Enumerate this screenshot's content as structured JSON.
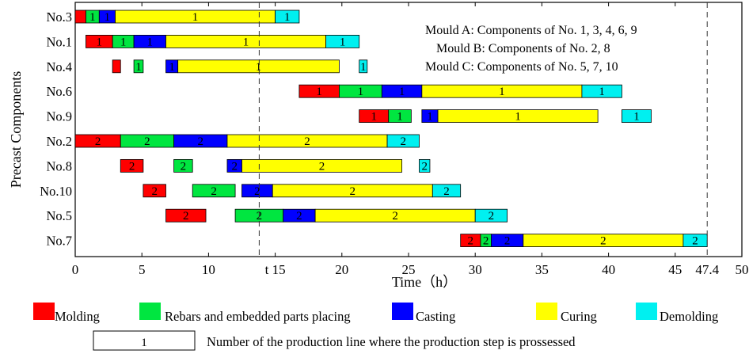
{
  "chart_data": {
    "type": "gantt",
    "ylabel": "Precast Components",
    "xlabel": "Time（h）",
    "xlim": [
      0,
      50
    ],
    "xticks": [
      0,
      5,
      10,
      15,
      20,
      25,
      30,
      35,
      40,
      45,
      50
    ],
    "xtick_labels": [
      "0",
      "5",
      "10",
      "t 15",
      "20",
      "25",
      "30",
      "35",
      "40",
      "45",
      "50"
    ],
    "extra_xtick": {
      "value": 47.4,
      "label": "47.4"
    },
    "vlines": [
      13.8,
      47.4
    ],
    "categories": [
      "No.3",
      "No.1",
      "No.4",
      "No.6",
      "No.9",
      "No.2",
      "No.8",
      "No.10",
      "No.5",
      "No.7"
    ],
    "step_colors": {
      "Molding": "#ff0000",
      "Rebars and embedded parts placing": "#00e640",
      "Casting": "#0000ff",
      "Curing": "#ffff00",
      "Demolding": "#00f0f0"
    },
    "tasks": [
      {
        "row": "No.3",
        "step": "Molding",
        "start": 0,
        "end": 0.8,
        "line": ""
      },
      {
        "row": "No.3",
        "step": "Rebars and embedded parts placing",
        "start": 0.8,
        "end": 1.8,
        "line": "1"
      },
      {
        "row": "No.3",
        "step": "Casting",
        "start": 1.8,
        "end": 3.0,
        "line": "1"
      },
      {
        "row": "No.3",
        "step": "Curing",
        "start": 3.0,
        "end": 15.0,
        "line": "1"
      },
      {
        "row": "No.3",
        "step": "Demolding",
        "start": 15.0,
        "end": 16.8,
        "line": "1"
      },
      {
        "row": "No.1",
        "step": "Molding",
        "start": 0.8,
        "end": 2.8,
        "line": "1"
      },
      {
        "row": "No.1",
        "step": "Rebars and embedded parts placing",
        "start": 2.8,
        "end": 4.4,
        "line": "1"
      },
      {
        "row": "No.1",
        "step": "Casting",
        "start": 4.4,
        "end": 6.8,
        "line": "1"
      },
      {
        "row": "No.1",
        "step": "Curing",
        "start": 6.8,
        "end": 18.8,
        "line": "1"
      },
      {
        "row": "No.1",
        "step": "Demolding",
        "start": 18.8,
        "end": 21.3,
        "line": "1"
      },
      {
        "row": "No.4",
        "step": "Molding",
        "start": 2.8,
        "end": 3.4,
        "line": ""
      },
      {
        "row": "No.4",
        "step": "Rebars and embedded parts placing",
        "start": 4.4,
        "end": 5.1,
        "line": "1"
      },
      {
        "row": "No.4",
        "step": "Casting",
        "start": 6.8,
        "end": 7.7,
        "line": "1"
      },
      {
        "row": "No.4",
        "step": "Curing",
        "start": 7.7,
        "end": 19.8,
        "line": "1"
      },
      {
        "row": "No.4",
        "step": "Demolding",
        "start": 21.3,
        "end": 21.9,
        "line": "1"
      },
      {
        "row": "No.6",
        "step": "Molding",
        "start": 16.8,
        "end": 19.8,
        "line": "1"
      },
      {
        "row": "No.6",
        "step": "Rebars and embedded parts placing",
        "start": 19.8,
        "end": 23.0,
        "line": "1"
      },
      {
        "row": "No.6",
        "step": "Casting",
        "start": 23.0,
        "end": 26.0,
        "line": "1"
      },
      {
        "row": "No.6",
        "step": "Curing",
        "start": 26.0,
        "end": 38.0,
        "line": "1"
      },
      {
        "row": "No.6",
        "step": "Demolding",
        "start": 38.0,
        "end": 41.0,
        "line": "1"
      },
      {
        "row": "No.9",
        "step": "Molding",
        "start": 21.3,
        "end": 23.5,
        "line": "1"
      },
      {
        "row": "No.9",
        "step": "Rebars and embedded parts placing",
        "start": 23.5,
        "end": 25.2,
        "line": "1"
      },
      {
        "row": "No.9",
        "step": "Casting",
        "start": 26.0,
        "end": 27.2,
        "line": "1"
      },
      {
        "row": "No.9",
        "step": "Curing",
        "start": 27.2,
        "end": 39.2,
        "line": "1"
      },
      {
        "row": "No.9",
        "step": "Demolding",
        "start": 41.0,
        "end": 43.2,
        "line": "1"
      },
      {
        "row": "No.2",
        "step": "Molding",
        "start": 0,
        "end": 3.4,
        "line": "2"
      },
      {
        "row": "No.2",
        "step": "Rebars and embedded parts placing",
        "start": 3.4,
        "end": 7.4,
        "line": "2"
      },
      {
        "row": "No.2",
        "step": "Casting",
        "start": 7.4,
        "end": 11.4,
        "line": "2"
      },
      {
        "row": "No.2",
        "step": "Curing",
        "start": 11.4,
        "end": 23.4,
        "line": "2"
      },
      {
        "row": "No.2",
        "step": "Demolding",
        "start": 23.4,
        "end": 25.8,
        "line": "2"
      },
      {
        "row": "No.8",
        "step": "Molding",
        "start": 3.4,
        "end": 5.1,
        "line": "2"
      },
      {
        "row": "No.8",
        "step": "Rebars and embedded parts placing",
        "start": 7.4,
        "end": 8.8,
        "line": "2"
      },
      {
        "row": "No.8",
        "step": "Casting",
        "start": 11.4,
        "end": 12.5,
        "line": "2"
      },
      {
        "row": "No.8",
        "step": "Curing",
        "start": 12.5,
        "end": 24.5,
        "line": "2"
      },
      {
        "row": "No.8",
        "step": "Demolding",
        "start": 25.8,
        "end": 26.6,
        "line": "2"
      },
      {
        "row": "No.10",
        "step": "Molding",
        "start": 5.1,
        "end": 6.8,
        "line": "2"
      },
      {
        "row": "No.10",
        "step": "Rebars and embedded parts placing",
        "start": 8.8,
        "end": 12.0,
        "line": "2"
      },
      {
        "row": "No.10",
        "step": "Casting",
        "start": 12.5,
        "end": 14.8,
        "line": "2"
      },
      {
        "row": "No.10",
        "step": "Curing",
        "start": 14.8,
        "end": 26.8,
        "line": "2"
      },
      {
        "row": "No.10",
        "step": "Demolding",
        "start": 26.8,
        "end": 28.9,
        "line": "2"
      },
      {
        "row": "No.5",
        "step": "Molding",
        "start": 6.8,
        "end": 9.8,
        "line": "2"
      },
      {
        "row": "No.5",
        "step": "Rebars and embedded parts placing",
        "start": 12.0,
        "end": 15.6,
        "line": "2"
      },
      {
        "row": "No.5",
        "step": "Casting",
        "start": 15.6,
        "end": 18.0,
        "line": "2"
      },
      {
        "row": "No.5",
        "step": "Curing",
        "start": 18.0,
        "end": 30.0,
        "line": "2"
      },
      {
        "row": "No.5",
        "step": "Demolding",
        "start": 30.0,
        "end": 32.4,
        "line": "2"
      },
      {
        "row": "No.7",
        "step": "Molding",
        "start": 28.9,
        "end": 30.4,
        "line": "2"
      },
      {
        "row": "No.7",
        "step": "Rebars and embedded parts placing",
        "start": 30.4,
        "end": 31.2,
        "line": "2"
      },
      {
        "row": "No.7",
        "step": "Casting",
        "start": 31.2,
        "end": 33.6,
        "line": "2"
      },
      {
        "row": "No.7",
        "step": "Curing",
        "start": 33.6,
        "end": 45.6,
        "line": "2"
      },
      {
        "row": "No.7",
        "step": "Demolding",
        "start": 45.6,
        "end": 47.4,
        "line": "2"
      }
    ],
    "annotations": [
      "Mould A: Components of No. 1, 3, 4, 6, 9",
      "Mould B: Components of No. 2, 8",
      "Mould C: Components of No. 5, 7, 10"
    ],
    "legend": [
      {
        "label": "Molding",
        "color": "#ff0000"
      },
      {
        "label": "Rebars and embedded parts placing",
        "color": "#00e640"
      },
      {
        "label": "Casting",
        "color": "#0000ff"
      },
      {
        "label": "Curing",
        "color": "#ffff00"
      },
      {
        "label": "Demolding",
        "color": "#00f0f0"
      }
    ],
    "legend_note": {
      "box_label": "1",
      "text": "Number of the production line where the production step is prossessed"
    }
  }
}
